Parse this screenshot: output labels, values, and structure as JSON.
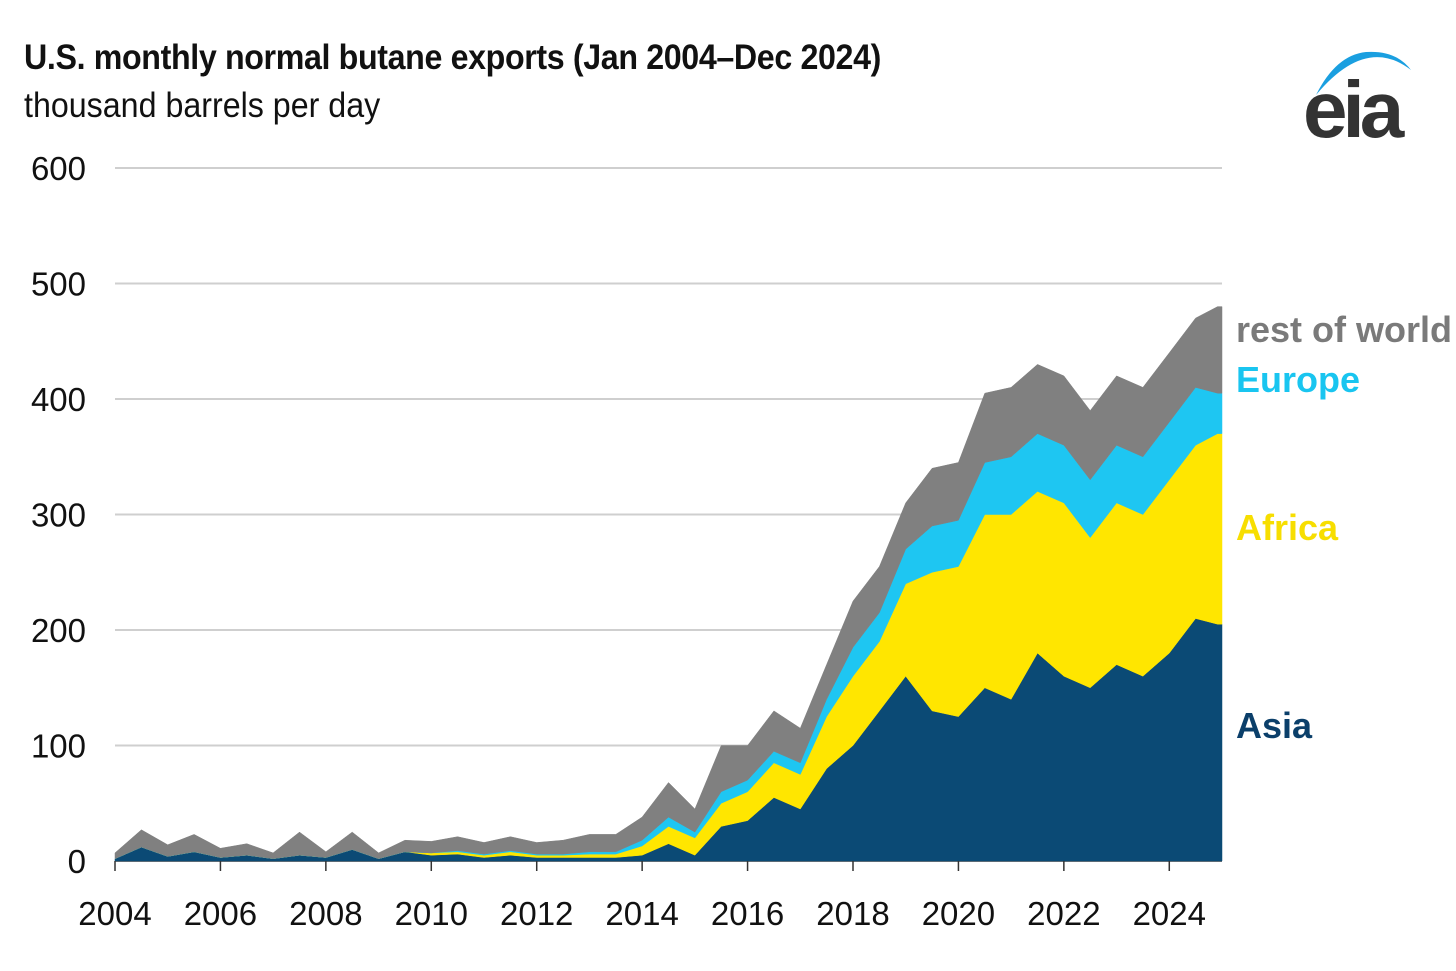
{
  "header": {
    "title": "U.S. monthly normal butane exports (Jan 2004–Dec 2024)",
    "subtitle": "thousand barrels per day",
    "logo_text": "eia"
  },
  "chart_data": {
    "type": "area",
    "title": "U.S. monthly normal butane exports (Jan 2004–Dec 2024)",
    "ylabel": "thousand barrels per day",
    "xlabel": "",
    "ylim": [
      0,
      600
    ],
    "xlim": [
      "2004-01",
      "2024-12"
    ],
    "yticks": [
      "0",
      "100",
      "200",
      "300",
      "400",
      "500",
      "600"
    ],
    "xticks": [
      "2004",
      "2006",
      "2008",
      "2010",
      "2012",
      "2014",
      "2016",
      "2018",
      "2020",
      "2022",
      "2024"
    ],
    "grid": true,
    "stacked": true,
    "legend": "inline-right",
    "x": [
      "2004-01",
      "2004-07",
      "2005-01",
      "2005-07",
      "2006-01",
      "2006-07",
      "2007-01",
      "2007-07",
      "2008-01",
      "2008-07",
      "2009-01",
      "2009-07",
      "2010-01",
      "2010-07",
      "2011-01",
      "2011-07",
      "2012-01",
      "2012-07",
      "2013-01",
      "2013-07",
      "2014-01",
      "2014-07",
      "2015-01",
      "2015-07",
      "2016-01",
      "2016-07",
      "2017-01",
      "2017-07",
      "2018-01",
      "2018-07",
      "2019-01",
      "2019-07",
      "2020-01",
      "2020-07",
      "2021-01",
      "2021-07",
      "2022-01",
      "2022-07",
      "2023-01",
      "2023-07",
      "2024-01",
      "2024-07",
      "2024-12"
    ],
    "series": [
      {
        "name": "Asia",
        "color": "#0b4a75",
        "values": [
          2,
          12,
          4,
          8,
          3,
          5,
          2,
          5,
          3,
          10,
          2,
          8,
          5,
          6,
          3,
          5,
          3,
          3,
          3,
          3,
          5,
          15,
          5,
          30,
          35,
          55,
          45,
          80,
          100,
          130,
          160,
          130,
          125,
          150,
          140,
          180,
          160,
          150,
          170,
          160,
          180,
          210,
          205
        ]
      },
      {
        "name": "Africa",
        "color": "#ffe600",
        "values": [
          0,
          0,
          0,
          0,
          0,
          0,
          0,
          0,
          0,
          0,
          0,
          0,
          2,
          2,
          2,
          3,
          2,
          2,
          3,
          3,
          8,
          15,
          15,
          20,
          25,
          30,
          30,
          45,
          60,
          60,
          80,
          120,
          130,
          150,
          160,
          140,
          150,
          130,
          140,
          140,
          150,
          150,
          165
        ]
      },
      {
        "name": "Europe",
        "color": "#1ec6f2",
        "values": [
          0,
          0,
          0,
          0,
          0,
          0,
          0,
          0,
          0,
          0,
          0,
          0,
          0,
          1,
          1,
          1,
          1,
          1,
          2,
          2,
          5,
          8,
          5,
          10,
          10,
          10,
          10,
          15,
          25,
          25,
          30,
          40,
          40,
          45,
          50,
          50,
          50,
          50,
          50,
          50,
          50,
          50,
          35
        ]
      },
      {
        "name": "rest of world",
        "color": "#808080",
        "values": [
          5,
          15,
          10,
          15,
          8,
          10,
          5,
          20,
          5,
          15,
          5,
          10,
          10,
          12,
          10,
          12,
          10,
          12,
          15,
          15,
          20,
          30,
          20,
          40,
          30,
          35,
          30,
          30,
          40,
          40,
          40,
          50,
          50,
          60,
          60,
          60,
          60,
          60,
          60,
          60,
          60,
          60,
          75
        ]
      }
    ]
  }
}
